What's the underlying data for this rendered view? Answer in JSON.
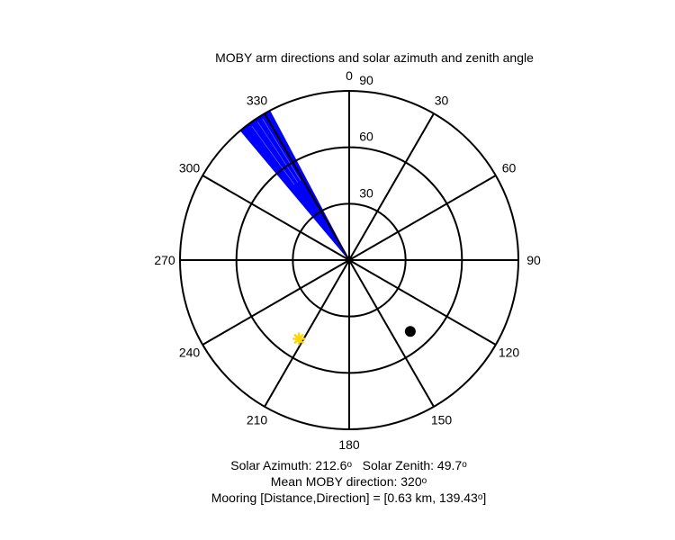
{
  "chart_data": {
    "type": "polar",
    "title": "MOBY arm directions and solar azimuth and zenith angle",
    "angle_ticks": [
      "0",
      "30",
      "60",
      "90",
      "120",
      "150",
      "180",
      "210",
      "240",
      "270",
      "300",
      "330"
    ],
    "angle_tick_values": [
      0,
      30,
      60,
      90,
      120,
      150,
      180,
      210,
      240,
      270,
      300,
      330
    ],
    "radial_ticks": [
      "30",
      "60",
      "90"
    ],
    "radial_tick_values": [
      30,
      60,
      90
    ],
    "r_max": 90,
    "moby_arm_wedge": {
      "color": "#0000ff",
      "direction_range_deg": [
        320,
        332
      ],
      "radius_range": [
        0,
        90
      ]
    },
    "solar_point": {
      "azimuth": 212.6,
      "zenith": 49.7,
      "color": "#ffd700",
      "marker": "star"
    },
    "mooring_point": {
      "direction": 139.43,
      "radius": 50,
      "color": "#000000",
      "marker": "circle"
    }
  },
  "captions": {
    "line1_solar_azimuth": "Solar Azimuth: 212.6",
    "line1_solar_zenith": "Solar Zenith: 49.7",
    "line2": "Mean MOBY direction: 320",
    "line3_start": "Mooring [Distance,Direction] = [0.63 km, 139.43",
    "line3_end": "]",
    "degree_symbol": "o"
  }
}
